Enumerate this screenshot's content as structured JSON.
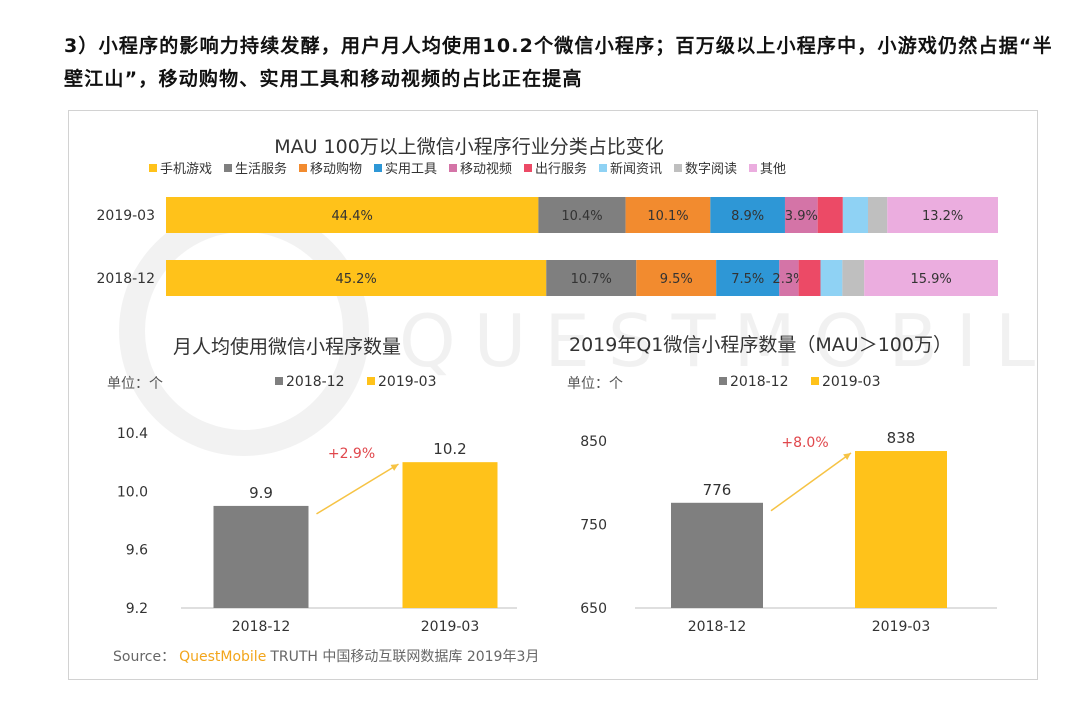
{
  "headline": "3）小程序的影响力持续发酵，用户月人均使用10.2个微信小程序；百万级以上小程序中，小游戏仍然占据“半壁江山”，移动购物、实用工具和移动视频的占比正在提高",
  "watermark": "QUESTMOBILE",
  "source": {
    "label": "Source：",
    "brand": "QuestMobile",
    "text": "TRUTH 中国移动互联网数据库 2019年3月"
  },
  "chart_data": [
    {
      "type": "bar",
      "orientation": "horizontal-stacked-100",
      "title": "MAU 100万以上微信小程序行业分类占比变化",
      "categories": [
        "2019-03",
        "2018-12"
      ],
      "legend_position": "top",
      "series": [
        {
          "name": "手机游戏",
          "color": "#FFC21A",
          "values": [
            44.4,
            45.2
          ],
          "labels": [
            "44.4%",
            "45.2%"
          ]
        },
        {
          "name": "生活服务",
          "color": "#7F7F7F",
          "values": [
            10.4,
            10.7
          ],
          "labels": [
            "10.4%",
            "10.7%"
          ]
        },
        {
          "name": "移动购物",
          "color": "#F28B2F",
          "values": [
            10.1,
            9.5
          ],
          "labels": [
            "10.1%",
            "9.5%"
          ]
        },
        {
          "name": "实用工具",
          "color": "#2E97D6",
          "values": [
            8.9,
            7.5
          ],
          "labels": [
            "8.9%",
            "7.5%"
          ]
        },
        {
          "name": "移动视频",
          "color": "#D474A7",
          "values": [
            3.9,
            2.3
          ],
          "labels": [
            "3.9%",
            "2.3%"
          ]
        },
        {
          "name": "出行服务",
          "color": "#EC4A66",
          "values": [
            3.0,
            2.6
          ],
          "labels": [
            "",
            ""
          ]
        },
        {
          "name": "新闻资讯",
          "color": "#8FD2F4",
          "values": [
            3.0,
            2.6
          ],
          "labels": [
            "",
            ""
          ]
        },
        {
          "name": "数字阅读",
          "color": "#BFBFBF",
          "values": [
            2.3,
            2.6
          ],
          "labels": [
            "",
            ""
          ]
        },
        {
          "name": "其他",
          "color": "#EBADDF",
          "values": [
            13.2,
            15.9
          ],
          "labels": [
            "13.2%",
            "15.9%"
          ]
        }
      ]
    },
    {
      "type": "bar",
      "title": "月人均使用微信小程序数量",
      "unit_label": "单位：个",
      "categories": [
        "2018-12",
        "2019-03"
      ],
      "values": [
        9.9,
        10.2
      ],
      "value_labels": [
        "9.9",
        "10.2"
      ],
      "colors": [
        "#7F7F7F",
        "#FFC21A"
      ],
      "legend": [
        "2018-12",
        "2019-03"
      ],
      "ylim": [
        9.2,
        10.4
      ],
      "yticks": [
        9.2,
        9.6,
        10.0,
        10.4
      ],
      "ytick_labels": [
        "9.2",
        "9.6",
        "10.0",
        "10.4"
      ],
      "growth_label": "+2.9%"
    },
    {
      "type": "bar",
      "title": "2019年Q1微信小程序数量（MAU＞100万）",
      "unit_label": "单位：个",
      "categories": [
        "2018-12",
        "2019-03"
      ],
      "values": [
        776,
        838
      ],
      "value_labels": [
        "776",
        "838"
      ],
      "colors": [
        "#7F7F7F",
        "#FFC21A"
      ],
      "legend": [
        "2018-12",
        "2019-03"
      ],
      "ylim": [
        650,
        850
      ],
      "yticks": [
        650,
        750,
        850
      ],
      "ytick_labels": [
        "650",
        "750",
        "850"
      ],
      "growth_label": "+8.0%"
    }
  ]
}
